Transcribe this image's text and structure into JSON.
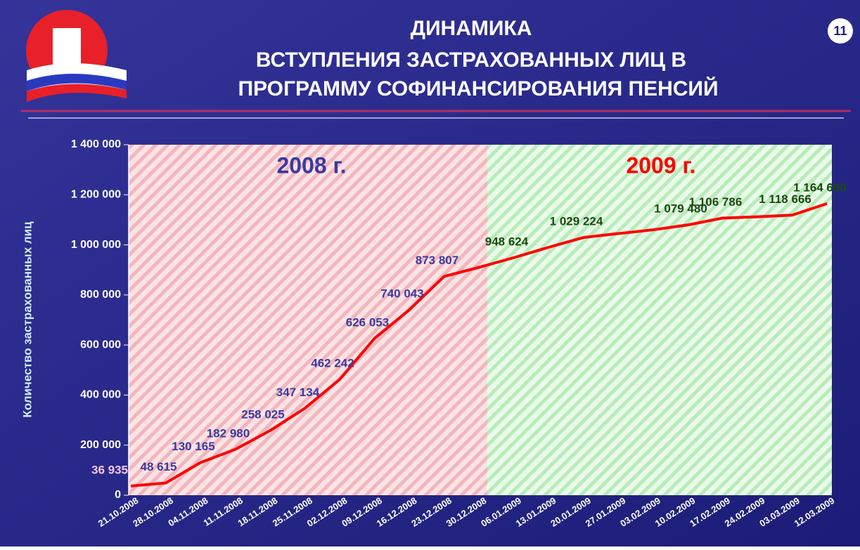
{
  "page_number": "11",
  "chart_data": {
    "type": "line",
    "title": "ДИНАМИКА",
    "subtitle": [
      "ВСТУПЛЕНИЯ ЗАСТРАХОВАННЫХ ЛИЦ В",
      "ПРОГРАММУ СОФИНАНСИРОВАНИЯ ПЕНСИЙ"
    ],
    "y_label": "Количество застрахованных лиц",
    "annotations": [
      "2008 г.",
      "2009 г."
    ],
    "categories": [
      "21.10.2008",
      "28.10.2008",
      "04.11.2008",
      "11.11.2008",
      "18.11.2008",
      "25.11.2008",
      "02.12.2008",
      "09.12.2008",
      "16.12.2008",
      "23.12.2008",
      "30.12.2008",
      "06.01.2009",
      "13.01.2009",
      "20.01.2009",
      "27.01.2009",
      "03.02.2009",
      "10.02.2009",
      "17.02.2009",
      "24.02.2009",
      "03.03.2009",
      "12.03.2009"
    ],
    "series": [
      {
        "name": "Количество застрахованных лиц",
        "color": "#ff0000",
        "values": [
          36935,
          48615,
          130165,
          182980,
          258025,
          347134,
          462242,
          626053,
          740043,
          873807,
          910000,
          948624,
          990000,
          1029224,
          1045000,
          1060000,
          1079480,
          1106786,
          1112000,
          1118666,
          1164690
        ],
        "value_labels": [
          "36 935",
          "48 615",
          "130 165",
          "182 980",
          "258 025",
          "347 134",
          "462 242",
          "626 053",
          "740 043",
          "873 807",
          null,
          "948 624",
          null,
          "1 029 224",
          null,
          null,
          "1 079 480",
          "1 106 786",
          null,
          "1 118 666",
          "1 164 690"
        ]
      }
    ],
    "ylim": [
      0,
      1400000
    ],
    "yticks": [
      0,
      {
        "value": 200000,
        "label": "200 000"
      },
      {
        "value": 400000,
        "label": "400 000"
      },
      {
        "value": 600000,
        "label": "600 000"
      },
      {
        "value": 800000,
        "label": "800 000"
      },
      {
        "value": 1000000,
        "label": "1 000 000"
      },
      {
        "value": 1200000,
        "label": "1 200 000"
      },
      {
        "value": 1400000,
        "label": "1 400 000"
      }
    ]
  }
}
